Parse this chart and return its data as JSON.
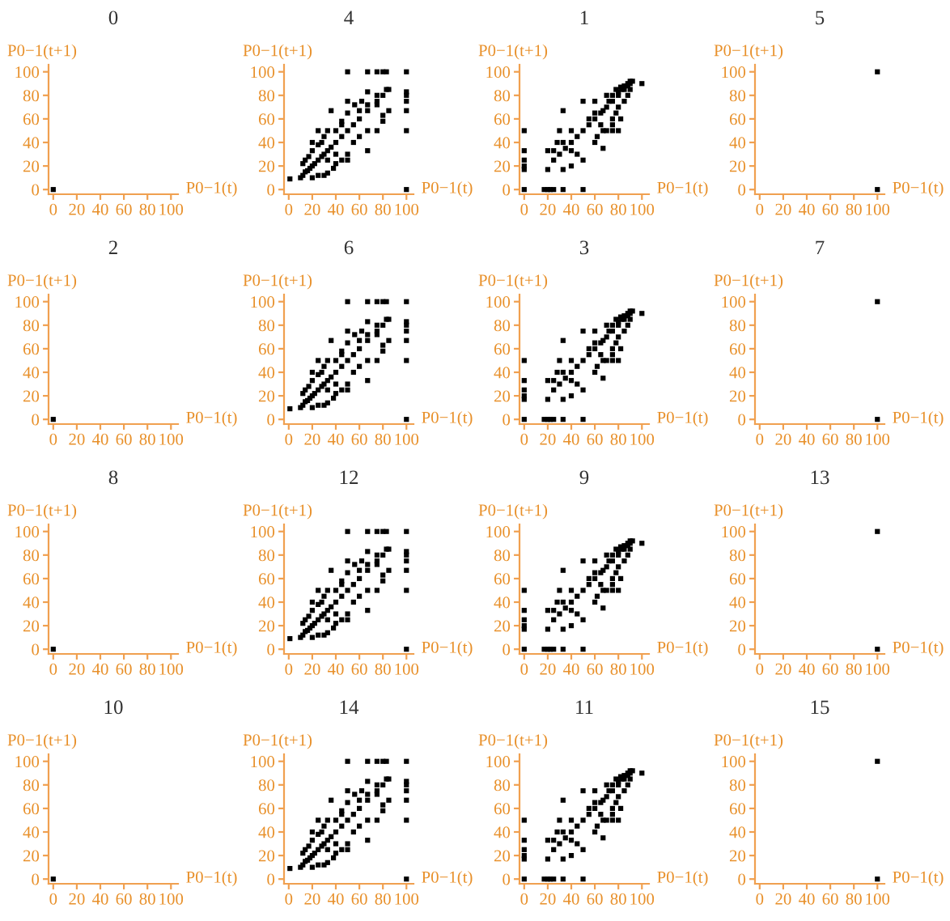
{
  "chart_data": [
    {
      "type": "scatter",
      "title": "0",
      "xlabel": "P0−1(t)",
      "ylabel": "P0−1(t+1)",
      "marker": "square",
      "color": "#000000",
      "xlim": [
        -4,
        106
      ],
      "ylim": [
        -4,
        106
      ],
      "xticks": [
        0,
        20,
        40,
        60,
        80,
        100
      ],
      "yticks": [
        0,
        20,
        40,
        60,
        80,
        100
      ],
      "x": [
        0
      ],
      "values": [
        0
      ]
    },
    {
      "type": "scatter",
      "title": "4",
      "xlabel": "P0−1(t)",
      "ylabel": "P0−1(t+1)",
      "marker": "square",
      "color": "#000000",
      "xlim": [
        -4,
        106
      ],
      "ylim": [
        -4,
        106
      ],
      "xticks": [
        0,
        20,
        40,
        60,
        80,
        100
      ],
      "yticks": [
        0,
        20,
        40,
        60,
        80,
        100
      ],
      "x": [
        1,
        100,
        100,
        100,
        100,
        100,
        100,
        100,
        50,
        67,
        75,
        80,
        83,
        10,
        12,
        14,
        16,
        18,
        20,
        22,
        25,
        28,
        30,
        33,
        36,
        40,
        45,
        50,
        55,
        60,
        67,
        75,
        80,
        85,
        12,
        14,
        17,
        20,
        25,
        28,
        33,
        40,
        45,
        50,
        56,
        62,
        67,
        75,
        83,
        20,
        25,
        30,
        33,
        38,
        40,
        45,
        50,
        50,
        55,
        60,
        67,
        67,
        75,
        80,
        80,
        85,
        36,
        50,
        60,
        67,
        75,
        45,
        30,
        20,
        25,
        33,
        40
      ],
      "values": [
        9,
        0,
        100,
        83,
        80,
        75,
        67,
        50,
        100,
        100,
        100,
        100,
        100,
        10,
        12,
        15,
        16,
        18,
        20,
        22,
        25,
        28,
        30,
        33,
        36,
        40,
        45,
        50,
        55,
        60,
        67,
        75,
        80,
        85,
        22,
        25,
        28,
        33,
        38,
        40,
        50,
        50,
        58,
        65,
        72,
        75,
        83,
        80,
        85,
        10,
        12,
        12,
        14,
        18,
        22,
        25,
        25,
        30,
        40,
        45,
        33,
        50,
        50,
        58,
        63,
        67,
        67,
        75,
        67,
        72,
        72,
        55,
        45,
        40,
        50,
        25,
        30
      ]
    },
    {
      "type": "scatter",
      "title": "1",
      "xlabel": "P0−1(t)",
      "ylabel": "P0−1(t+1)",
      "marker": "square",
      "color": "#000000",
      "xlim": [
        -4,
        106
      ],
      "ylim": [
        -4,
        106
      ],
      "xticks": [
        0,
        20,
        40,
        60,
        80,
        100
      ],
      "yticks": [
        0,
        20,
        40,
        60,
        80,
        100
      ],
      "x": [
        0,
        0,
        0,
        0,
        0,
        0,
        17,
        20,
        22,
        25,
        33,
        50,
        20,
        20,
        25,
        33,
        33,
        40,
        30,
        33,
        40,
        40,
        45,
        50,
        50,
        50,
        55,
        60,
        60,
        62,
        67,
        67,
        70,
        75,
        75,
        80,
        67,
        70,
        75,
        80,
        85,
        90,
        78,
        82,
        88,
        92,
        100,
        55,
        60,
        65,
        70,
        72,
        75,
        80,
        83,
        85,
        88,
        90,
        85,
        88,
        90,
        80,
        78,
        82,
        75,
        65,
        60,
        45,
        40,
        35,
        30,
        25,
        28
      ],
      "values": [
        0,
        17,
        20,
        25,
        33,
        50,
        0,
        0,
        0,
        0,
        0,
        0,
        17,
        33,
        25,
        40,
        17,
        20,
        50,
        67,
        50,
        33,
        30,
        25,
        75,
        50,
        60,
        40,
        75,
        45,
        35,
        50,
        50,
        50,
        55,
        50,
        67,
        80,
        75,
        80,
        85,
        90,
        85,
        87,
        88,
        92,
        90,
        55,
        60,
        65,
        70,
        75,
        80,
        83,
        85,
        88,
        90,
        92,
        75,
        80,
        85,
        70,
        65,
        60,
        60,
        55,
        65,
        45,
        40,
        35,
        30,
        33,
        40
      ]
    },
    {
      "type": "scatter",
      "title": "5",
      "xlabel": "P0−1(t)",
      "ylabel": "P0−1(t+1)",
      "marker": "square",
      "color": "#000000",
      "xlim": [
        -4,
        106
      ],
      "ylim": [
        -4,
        106
      ],
      "xticks": [
        0,
        20,
        40,
        60,
        80,
        100
      ],
      "yticks": [
        0,
        20,
        40,
        60,
        80,
        100
      ],
      "x": [
        100,
        100
      ],
      "values": [
        0,
        100
      ]
    },
    {
      "type": "scatter",
      "title": "2",
      "xlabel": "P0−1(t)",
      "ylabel": "P0−1(t+1)",
      "marker": "square",
      "color": "#000000",
      "xlim": [
        -4,
        106
      ],
      "ylim": [
        -4,
        106
      ],
      "xticks": [
        0,
        20,
        40,
        60,
        80,
        100
      ],
      "yticks": [
        0,
        20,
        40,
        60,
        80,
        100
      ],
      "x": [
        0
      ],
      "values": [
        0
      ]
    },
    {
      "type": "scatter",
      "title": "6",
      "xlabel": "P0−1(t)",
      "ylabel": "P0−1(t+1)",
      "marker": "square",
      "color": "#000000",
      "xlim": [
        -4,
        106
      ],
      "ylim": [
        -4,
        106
      ],
      "xticks": [
        0,
        20,
        40,
        60,
        80,
        100
      ],
      "yticks": [
        0,
        20,
        40,
        60,
        80,
        100
      ],
      "x": [
        1,
        100,
        100,
        100,
        100,
        100,
        100,
        100,
        50,
        67,
        75,
        80,
        83,
        10,
        12,
        14,
        16,
        18,
        20,
        22,
        25,
        28,
        30,
        33,
        36,
        40,
        45,
        50,
        55,
        60,
        67,
        75,
        80,
        85,
        12,
        14,
        17,
        20,
        25,
        28,
        33,
        40,
        45,
        50,
        56,
        62,
        67,
        75,
        83,
        20,
        25,
        30,
        33,
        38,
        40,
        45,
        50,
        50,
        55,
        60,
        67,
        67,
        75,
        80,
        80,
        85,
        36,
        50,
        60,
        67,
        75,
        45,
        30,
        20,
        25,
        33,
        40
      ],
      "values": [
        9,
        0,
        100,
        83,
        80,
        75,
        67,
        50,
        100,
        100,
        100,
        100,
        100,
        10,
        12,
        15,
        16,
        18,
        20,
        22,
        25,
        28,
        30,
        33,
        36,
        40,
        45,
        50,
        55,
        60,
        67,
        75,
        80,
        85,
        22,
        25,
        28,
        33,
        38,
        40,
        50,
        50,
        58,
        65,
        72,
        75,
        83,
        80,
        85,
        10,
        12,
        12,
        14,
        18,
        22,
        25,
        25,
        30,
        40,
        45,
        33,
        50,
        50,
        58,
        63,
        67,
        67,
        75,
        67,
        72,
        72,
        55,
        45,
        40,
        50,
        25,
        30
      ]
    },
    {
      "type": "scatter",
      "title": "3",
      "xlabel": "P0−1(t)",
      "ylabel": "P0−1(t+1)",
      "marker": "square",
      "color": "#000000",
      "xlim": [
        -4,
        106
      ],
      "ylim": [
        -4,
        106
      ],
      "xticks": [
        0,
        20,
        40,
        60,
        80,
        100
      ],
      "yticks": [
        0,
        20,
        40,
        60,
        80,
        100
      ],
      "x": [
        0,
        0,
        0,
        0,
        0,
        0,
        17,
        20,
        22,
        25,
        33,
        50,
        20,
        20,
        25,
        33,
        33,
        40,
        30,
        33,
        40,
        40,
        45,
        50,
        50,
        50,
        55,
        60,
        60,
        62,
        67,
        67,
        70,
        75,
        75,
        80,
        67,
        70,
        75,
        80,
        85,
        90,
        78,
        82,
        88,
        92,
        100,
        55,
        60,
        65,
        70,
        72,
        75,
        80,
        83,
        85,
        88,
        90,
        85,
        88,
        90,
        80,
        78,
        82,
        75,
        65,
        60,
        45,
        40,
        35,
        30,
        25,
        28
      ],
      "values": [
        0,
        17,
        20,
        25,
        33,
        50,
        0,
        0,
        0,
        0,
        0,
        0,
        17,
        33,
        25,
        40,
        17,
        20,
        50,
        67,
        50,
        33,
        30,
        25,
        75,
        50,
        60,
        40,
        75,
        45,
        35,
        50,
        50,
        50,
        55,
        50,
        67,
        80,
        75,
        80,
        85,
        90,
        85,
        87,
        88,
        92,
        90,
        55,
        60,
        65,
        70,
        75,
        80,
        83,
        85,
        88,
        90,
        92,
        75,
        80,
        85,
        70,
        65,
        60,
        60,
        55,
        65,
        45,
        40,
        35,
        30,
        33,
        40
      ]
    },
    {
      "type": "scatter",
      "title": "7",
      "xlabel": "P0−1(t)",
      "ylabel": "P0−1(t+1)",
      "marker": "square",
      "color": "#000000",
      "xlim": [
        -4,
        106
      ],
      "ylim": [
        -4,
        106
      ],
      "xticks": [
        0,
        20,
        40,
        60,
        80,
        100
      ],
      "yticks": [
        0,
        20,
        40,
        60,
        80,
        100
      ],
      "x": [
        100,
        100
      ],
      "values": [
        0,
        100
      ]
    },
    {
      "type": "scatter",
      "title": "8",
      "xlabel": "P0−1(t)",
      "ylabel": "P0−1(t+1)",
      "marker": "square",
      "color": "#000000",
      "xlim": [
        -4,
        106
      ],
      "ylim": [
        -4,
        106
      ],
      "xticks": [
        0,
        20,
        40,
        60,
        80,
        100
      ],
      "yticks": [
        0,
        20,
        40,
        60,
        80,
        100
      ],
      "x": [
        0
      ],
      "values": [
        0
      ]
    },
    {
      "type": "scatter",
      "title": "12",
      "xlabel": "P0−1(t)",
      "ylabel": "P0−1(t+1)",
      "marker": "square",
      "color": "#000000",
      "xlim": [
        -4,
        106
      ],
      "ylim": [
        -4,
        106
      ],
      "xticks": [
        0,
        20,
        40,
        60,
        80,
        100
      ],
      "yticks": [
        0,
        20,
        40,
        60,
        80,
        100
      ],
      "x": [
        1,
        100,
        100,
        100,
        100,
        100,
        100,
        100,
        50,
        67,
        75,
        80,
        83,
        10,
        12,
        14,
        16,
        18,
        20,
        22,
        25,
        28,
        30,
        33,
        36,
        40,
        45,
        50,
        55,
        60,
        67,
        75,
        80,
        85,
        12,
        14,
        17,
        20,
        25,
        28,
        33,
        40,
        45,
        50,
        56,
        62,
        67,
        75,
        83,
        20,
        25,
        30,
        33,
        38,
        40,
        45,
        50,
        50,
        55,
        60,
        67,
        67,
        75,
        80,
        80,
        85,
        36,
        50,
        60,
        67,
        75,
        45,
        30,
        20,
        25,
        33,
        40
      ],
      "values": [
        9,
        0,
        100,
        83,
        80,
        75,
        67,
        50,
        100,
        100,
        100,
        100,
        100,
        10,
        12,
        15,
        16,
        18,
        20,
        22,
        25,
        28,
        30,
        33,
        36,
        40,
        45,
        50,
        55,
        60,
        67,
        75,
        80,
        85,
        22,
        25,
        28,
        33,
        38,
        40,
        50,
        50,
        58,
        65,
        72,
        75,
        83,
        80,
        85,
        10,
        12,
        12,
        14,
        18,
        22,
        25,
        25,
        30,
        40,
        45,
        33,
        50,
        50,
        58,
        63,
        67,
        67,
        75,
        67,
        72,
        72,
        55,
        45,
        40,
        50,
        25,
        30
      ]
    },
    {
      "type": "scatter",
      "title": "9",
      "xlabel": "P0−1(t)",
      "ylabel": "P0−1(t+1)",
      "marker": "square",
      "color": "#000000",
      "xlim": [
        -4,
        106
      ],
      "ylim": [
        -4,
        106
      ],
      "xticks": [
        0,
        20,
        40,
        60,
        80,
        100
      ],
      "yticks": [
        0,
        20,
        40,
        60,
        80,
        100
      ],
      "x": [
        0,
        0,
        0,
        0,
        0,
        0,
        17,
        20,
        22,
        25,
        33,
        50,
        20,
        20,
        25,
        33,
        33,
        40,
        30,
        33,
        40,
        40,
        45,
        50,
        50,
        50,
        55,
        60,
        60,
        62,
        67,
        67,
        70,
        75,
        75,
        80,
        67,
        70,
        75,
        80,
        85,
        90,
        78,
        82,
        88,
        92,
        100,
        55,
        60,
        65,
        70,
        72,
        75,
        80,
        83,
        85,
        88,
        90,
        85,
        88,
        90,
        80,
        78,
        82,
        75,
        65,
        60,
        45,
        40,
        35,
        30,
        25,
        28
      ],
      "values": [
        0,
        17,
        20,
        25,
        33,
        50,
        0,
        0,
        0,
        0,
        0,
        0,
        17,
        33,
        25,
        40,
        17,
        20,
        50,
        67,
        50,
        33,
        30,
        25,
        75,
        50,
        60,
        40,
        75,
        45,
        35,
        50,
        50,
        50,
        55,
        50,
        67,
        80,
        75,
        80,
        85,
        90,
        85,
        87,
        88,
        92,
        90,
        55,
        60,
        65,
        70,
        75,
        80,
        83,
        85,
        88,
        90,
        92,
        75,
        80,
        85,
        70,
        65,
        60,
        60,
        55,
        65,
        45,
        40,
        35,
        30,
        33,
        40
      ]
    },
    {
      "type": "scatter",
      "title": "13",
      "xlabel": "P0−1(t)",
      "ylabel": "P0−1(t+1)",
      "marker": "square",
      "color": "#000000",
      "xlim": [
        -4,
        106
      ],
      "ylim": [
        -4,
        106
      ],
      "xticks": [
        0,
        20,
        40,
        60,
        80,
        100
      ],
      "yticks": [
        0,
        20,
        40,
        60,
        80,
        100
      ],
      "x": [
        100,
        100
      ],
      "values": [
        0,
        100
      ]
    },
    {
      "type": "scatter",
      "title": "10",
      "xlabel": "P0−1(t)",
      "ylabel": "P0−1(t+1)",
      "marker": "square",
      "color": "#000000",
      "xlim": [
        -4,
        106
      ],
      "ylim": [
        -4,
        106
      ],
      "xticks": [
        0,
        20,
        40,
        60,
        80,
        100
      ],
      "yticks": [
        0,
        20,
        40,
        60,
        80,
        100
      ],
      "x": [
        0
      ],
      "values": [
        0
      ]
    },
    {
      "type": "scatter",
      "title": "14",
      "xlabel": "P0−1(t)",
      "ylabel": "P0−1(t+1)",
      "marker": "square",
      "color": "#000000",
      "xlim": [
        -4,
        106
      ],
      "ylim": [
        -4,
        106
      ],
      "xticks": [
        0,
        20,
        40,
        60,
        80,
        100
      ],
      "yticks": [
        0,
        20,
        40,
        60,
        80,
        100
      ],
      "x": [
        1,
        100,
        100,
        100,
        100,
        100,
        100,
        100,
        50,
        67,
        75,
        80,
        83,
        10,
        12,
        14,
        16,
        18,
        20,
        22,
        25,
        28,
        30,
        33,
        36,
        40,
        45,
        50,
        55,
        60,
        67,
        75,
        80,
        85,
        12,
        14,
        17,
        20,
        25,
        28,
        33,
        40,
        45,
        50,
        56,
        62,
        67,
        75,
        83,
        20,
        25,
        30,
        33,
        38,
        40,
        45,
        50,
        50,
        55,
        60,
        67,
        67,
        75,
        80,
        80,
        85,
        36,
        50,
        60,
        67,
        75,
        45,
        30,
        20,
        25,
        33,
        40
      ],
      "values": [
        9,
        0,
        100,
        83,
        80,
        75,
        67,
        50,
        100,
        100,
        100,
        100,
        100,
        10,
        12,
        15,
        16,
        18,
        20,
        22,
        25,
        28,
        30,
        33,
        36,
        40,
        45,
        50,
        55,
        60,
        67,
        75,
        80,
        85,
        22,
        25,
        28,
        33,
        38,
        40,
        50,
        50,
        58,
        65,
        72,
        75,
        83,
        80,
        85,
        10,
        12,
        12,
        14,
        18,
        22,
        25,
        25,
        30,
        40,
        45,
        33,
        50,
        50,
        58,
        63,
        67,
        67,
        75,
        67,
        72,
        72,
        55,
        45,
        40,
        50,
        25,
        30
      ]
    },
    {
      "type": "scatter",
      "title": "11",
      "xlabel": "P0−1(t)",
      "ylabel": "P0−1(t+1)",
      "marker": "square",
      "color": "#000000",
      "xlim": [
        -4,
        106
      ],
      "ylim": [
        -4,
        106
      ],
      "xticks": [
        0,
        20,
        40,
        60,
        80,
        100
      ],
      "yticks": [
        0,
        20,
        40,
        60,
        80,
        100
      ],
      "x": [
        0,
        0,
        0,
        0,
        0,
        0,
        17,
        20,
        22,
        25,
        33,
        50,
        20,
        20,
        25,
        33,
        33,
        40,
        30,
        33,
        40,
        40,
        45,
        50,
        50,
        50,
        55,
        60,
        60,
        62,
        67,
        67,
        70,
        75,
        75,
        80,
        67,
        70,
        75,
        80,
        85,
        90,
        78,
        82,
        88,
        92,
        100,
        55,
        60,
        65,
        70,
        72,
        75,
        80,
        83,
        85,
        88,
        90,
        85,
        88,
        90,
        80,
        78,
        82,
        75,
        65,
        60,
        45,
        40,
        35,
        30,
        25,
        28
      ],
      "values": [
        0,
        17,
        20,
        25,
        33,
        50,
        0,
        0,
        0,
        0,
        0,
        0,
        17,
        33,
        25,
        40,
        17,
        20,
        50,
        67,
        50,
        33,
        30,
        25,
        75,
        50,
        60,
        40,
        75,
        45,
        35,
        50,
        50,
        50,
        55,
        50,
        67,
        80,
        75,
        80,
        85,
        90,
        85,
        87,
        88,
        92,
        90,
        55,
        60,
        65,
        70,
        75,
        80,
        83,
        85,
        88,
        90,
        92,
        75,
        80,
        85,
        70,
        65,
        60,
        60,
        55,
        65,
        45,
        40,
        35,
        30,
        33,
        40
      ]
    },
    {
      "type": "scatter",
      "title": "15",
      "xlabel": "P0−1(t)",
      "ylabel": "P0−1(t+1)",
      "marker": "square",
      "color": "#000000",
      "xlim": [
        -4,
        106
      ],
      "ylim": [
        -4,
        106
      ],
      "xticks": [
        0,
        20,
        40,
        60,
        80,
        100
      ],
      "yticks": [
        0,
        20,
        40,
        60,
        80,
        100
      ],
      "x": [
        100,
        100
      ],
      "values": [
        0,
        100
      ]
    }
  ]
}
